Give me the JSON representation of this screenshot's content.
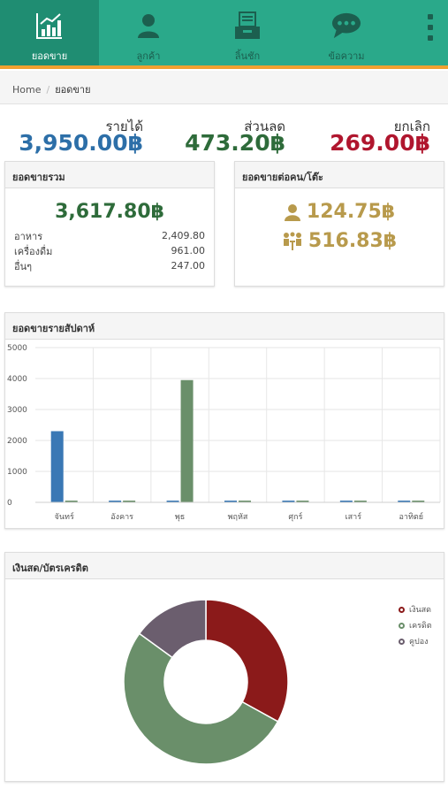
{
  "nav": {
    "items": [
      {
        "label": "ยอดขาย",
        "icon": "bar-chart-icon",
        "active": true
      },
      {
        "label": "ลูกค้า",
        "icon": "user-icon",
        "active": false
      },
      {
        "label": "ลิ้นชัก",
        "icon": "drawer-icon",
        "active": false
      },
      {
        "label": "ข้อความ",
        "icon": "chat-icon",
        "active": false
      }
    ]
  },
  "breadcrumb": {
    "home": "Home",
    "separator": "/",
    "current": "ยอดขาย"
  },
  "summary": {
    "revenue": {
      "title": "รายได้",
      "value": "3,950.00฿",
      "color": "#2d6fa8"
    },
    "discount": {
      "title": "ส่วนลด",
      "value": "473.20฿",
      "color": "#2e6b3a"
    },
    "cancel": {
      "title": "ยกเลิก",
      "value": "269.00฿",
      "color": "#b0162e"
    }
  },
  "total_sales": {
    "title": "ยอดขายรวม",
    "total": "3,617.80฿",
    "rows": [
      {
        "label": "อาหาร",
        "value": "2,409.80"
      },
      {
        "label": "เครื่องดื่ม",
        "value": "961.00"
      },
      {
        "label": "อื่นๆ",
        "value": "247.00"
      }
    ]
  },
  "per_person": {
    "title": "ยอดขายต่อคน/โต๊ะ",
    "per_person_value": "124.75฿",
    "per_table_value": "516.83฿",
    "color": "#b89a4c"
  },
  "weekly": {
    "title": "ยอดขายรายสัปดาห์"
  },
  "payment": {
    "title": "เงินสด/บัตรเครดิต"
  },
  "chart_data": [
    {
      "type": "bar",
      "title": "ยอดขายรายสัปดาห์",
      "categories": [
        "จันทร์",
        "อังคาร",
        "พุธ",
        "พฤหัส",
        "ศุกร์",
        "เสาร์",
        "อาทิตย์"
      ],
      "series": [
        {
          "values": [
            2300,
            0,
            0,
            0,
            0,
            0,
            0
          ],
          "color": "#3a78b5"
        },
        {
          "values": [
            0,
            0,
            3950,
            0,
            0,
            0,
            0
          ],
          "color": "#6a8f6a"
        }
      ],
      "ylim": [
        0,
        5000
      ],
      "yticks": [
        0,
        1000,
        2000,
        3000,
        4000,
        5000
      ],
      "grid": true
    },
    {
      "type": "pie",
      "title": "เงินสด/บัตรเครดิต",
      "labels": [
        "เงินสด",
        "เครดิต",
        "คูปอง"
      ],
      "values": [
        33,
        52,
        15
      ],
      "colors": [
        "#8b1a1a",
        "#6a8f6a",
        "#6b5e6e"
      ],
      "legend": "right"
    }
  ]
}
